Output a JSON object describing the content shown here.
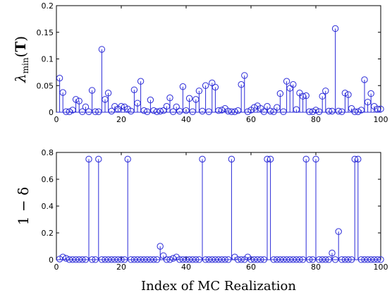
{
  "figure": {
    "xlabel": "Index of MC Realization"
  },
  "chart_data": [
    {
      "type": "stem",
      "ylabel": "λmin(T)",
      "ylabel_parts": {
        "main": "λ",
        "sub": "min",
        "paren_open": "(",
        "arg": "T",
        "paren_close": ")"
      },
      "xlim": [
        0,
        100
      ],
      "ylim": [
        0,
        0.2
      ],
      "xticks": [
        0,
        20,
        40,
        60,
        80,
        100
      ],
      "yticks": [
        0,
        0.05,
        0.1,
        0.15,
        0.2
      ],
      "yticklabels": [
        "0",
        "0.05",
        "0.1",
        "0.15",
        "0.2"
      ],
      "x": [
        1,
        2,
        3,
        4,
        5,
        6,
        7,
        8,
        9,
        10,
        11,
        12,
        13,
        14,
        15,
        16,
        17,
        18,
        19,
        20,
        21,
        22,
        23,
        24,
        25,
        26,
        27,
        28,
        29,
        30,
        31,
        32,
        33,
        34,
        35,
        36,
        37,
        38,
        39,
        40,
        41,
        42,
        43,
        44,
        45,
        46,
        47,
        48,
        49,
        50,
        51,
        52,
        53,
        54,
        55,
        56,
        57,
        58,
        59,
        60,
        61,
        62,
        63,
        64,
        65,
        66,
        67,
        68,
        69,
        70,
        71,
        72,
        73,
        74,
        75,
        76,
        77,
        78,
        79,
        80,
        81,
        82,
        83,
        84,
        85,
        86,
        87,
        88,
        89,
        90,
        91,
        92,
        93,
        94,
        95,
        96,
        97,
        98,
        99,
        100
      ],
      "values": [
        0.064,
        0.037,
        0.001,
        0.001,
        0.004,
        0.024,
        0.021,
        0.001,
        0.01,
        0.001,
        0.041,
        0.001,
        0.001,
        0.118,
        0.024,
        0.036,
        0.002,
        0.011,
        0.006,
        0.011,
        0.01,
        0.006,
        0.002,
        0.042,
        0.017,
        0.058,
        0.003,
        0.001,
        0.023,
        0.003,
        0.001,
        0.002,
        0.003,
        0.011,
        0.027,
        0.001,
        0.01,
        0.002,
        0.048,
        0.003,
        0.026,
        0.001,
        0.024,
        0.04,
        0.002,
        0.05,
        0.001,
        0.055,
        0.047,
        0.003,
        0.004,
        0.007,
        0.002,
        0.001,
        0.001,
        0.003,
        0.052,
        0.069,
        0.001,
        0.004,
        0.009,
        0.012,
        0.007,
        0.001,
        0.011,
        0.002,
        0.001,
        0.009,
        0.035,
        0.001,
        0.058,
        0.045,
        0.052,
        0.005,
        0.036,
        0.03,
        0.031,
        0.001,
        0.001,
        0.004,
        0.001,
        0.03,
        0.04,
        0.002,
        0.002,
        0.157,
        0.002,
        0.001,
        0.036,
        0.033,
        0.007,
        0.001,
        0.001,
        0.004,
        0.061,
        0.019,
        0.035,
        0.011,
        0.006,
        0.006
      ]
    },
    {
      "type": "stem",
      "ylabel": "1 − δ",
      "xlim": [
        0,
        100
      ],
      "ylim": [
        0,
        0.8
      ],
      "xticks": [
        0,
        20,
        40,
        60,
        80,
        100
      ],
      "yticks": [
        0,
        0.2,
        0.4,
        0.6,
        0.8
      ],
      "yticklabels": [
        "0",
        "0.2",
        "0.4",
        "0.6",
        "0.8"
      ],
      "x": [
        1,
        2,
        3,
        4,
        5,
        6,
        7,
        8,
        9,
        10,
        11,
        12,
        13,
        14,
        15,
        16,
        17,
        18,
        19,
        20,
        21,
        22,
        23,
        24,
        25,
        26,
        27,
        28,
        29,
        30,
        31,
        32,
        33,
        34,
        35,
        36,
        37,
        38,
        39,
        40,
        41,
        42,
        43,
        44,
        45,
        46,
        47,
        48,
        49,
        50,
        51,
        52,
        53,
        54,
        55,
        56,
        57,
        58,
        59,
        60,
        61,
        62,
        63,
        64,
        65,
        66,
        67,
        68,
        69,
        70,
        71,
        72,
        73,
        74,
        75,
        76,
        77,
        78,
        79,
        80,
        81,
        82,
        83,
        84,
        85,
        86,
        87,
        88,
        89,
        90,
        91,
        92,
        93,
        94,
        95,
        96,
        97,
        98,
        99,
        100
      ],
      "values": [
        0.005,
        0.02,
        0.01,
        0.001,
        0.001,
        0.001,
        0.001,
        0.001,
        0.001,
        0.75,
        0.001,
        0.001,
        0.75,
        0.001,
        0.001,
        0.001,
        0.001,
        0.001,
        0.001,
        0.001,
        0.001,
        0.75,
        0.001,
        0.001,
        0.001,
        0.001,
        0.001,
        0.001,
        0.001,
        0.001,
        0.001,
        0.1,
        0.03,
        0.001,
        0.001,
        0.01,
        0.02,
        0.001,
        0.001,
        0.001,
        0.001,
        0.001,
        0.001,
        0.001,
        0.75,
        0.001,
        0.001,
        0.001,
        0.001,
        0.001,
        0.001,
        0.001,
        0.001,
        0.75,
        0.02,
        0.001,
        0.001,
        0.001,
        0.02,
        0.001,
        0.001,
        0.001,
        0.001,
        0.001,
        0.75,
        0.75,
        0.001,
        0.001,
        0.001,
        0.001,
        0.001,
        0.001,
        0.001,
        0.001,
        0.001,
        0.001,
        0.75,
        0.001,
        0.001,
        0.75,
        0.001,
        0.001,
        0.001,
        0.001,
        0.05,
        0.001,
        0.21,
        0.001,
        0.001,
        0.001,
        0.001,
        0.75,
        0.75,
        0.001,
        0.001,
        0.001,
        0.001,
        0.001,
        0.001,
        0.001
      ]
    }
  ],
  "colors": {
    "stem": "#2b2bd8",
    "axis": "#000000"
  }
}
